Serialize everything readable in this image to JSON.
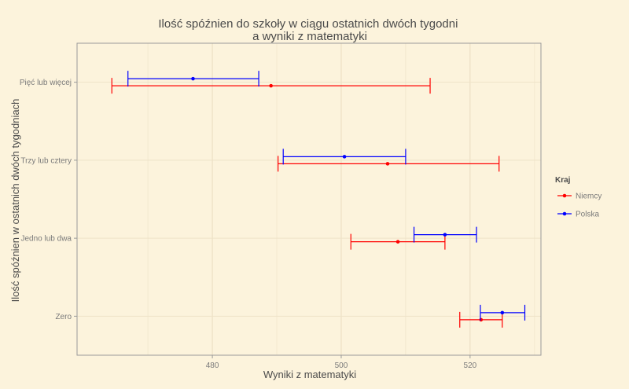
{
  "chart_data": {
    "type": "errorbar",
    "title": [
      "Ilość spóźnien do szkoły w ciągu ostatnich dwóch tygodni",
      "a wyniki z matematyki"
    ],
    "xlabel": "Wyniki z matematyki",
    "ylabel": "Ilość spóźnien w ostatnich dwóch tygodniach",
    "categories": [
      "Zero",
      "Jedno lub dwa",
      "Trzy lub cztery",
      "Pięć lub więcej"
    ],
    "xlim": [
      459,
      531
    ],
    "xticks": [
      480,
      500,
      520
    ],
    "grid": true,
    "legend": {
      "title": "Kraj",
      "position": "right"
    },
    "series": [
      {
        "name": "Niemcy",
        "color": "#ff0000",
        "points": [
          {
            "category": "Zero",
            "mean": 521.7,
            "low": 518.4,
            "high": 525.0
          },
          {
            "category": "Jedno lub dwa",
            "mean": 508.8,
            "low": 501.5,
            "high": 516.1
          },
          {
            "category": "Trzy lub cztery",
            "mean": 507.2,
            "low": 490.2,
            "high": 524.5
          },
          {
            "category": "Pięć lub więcej",
            "mean": 489.1,
            "low": 464.4,
            "high": 513.8
          }
        ]
      },
      {
        "name": "Polska",
        "color": "#0000ff",
        "points": [
          {
            "category": "Zero",
            "mean": 525.0,
            "low": 521.6,
            "high": 528.5
          },
          {
            "category": "Jedno lub dwa",
            "mean": 516.1,
            "low": 511.3,
            "high": 521.0
          },
          {
            "category": "Trzy lub cztery",
            "mean": 500.5,
            "low": 491.0,
            "high": 510.0
          },
          {
            "category": "Pięć lub więcej",
            "mean": 477.0,
            "low": 466.9,
            "high": 487.2
          }
        ]
      }
    ]
  }
}
